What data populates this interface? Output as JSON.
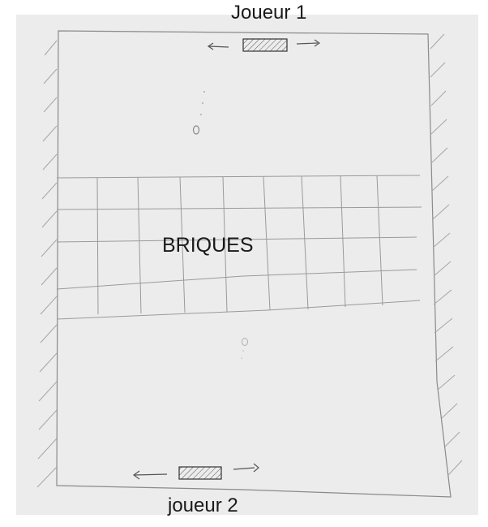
{
  "game": {
    "player_top": "Joueur 1",
    "player_bottom": "joueur 2",
    "bricks_label": "BRIQUES"
  },
  "colors": {
    "background": "#ffffff",
    "paper": "#ececec",
    "pencil": "#8a8a8a",
    "ink": "#1a1a1a"
  },
  "icons": {
    "paddle": "hatched-rectangle",
    "ball": "small-circle",
    "move_left": "arrow-left-icon",
    "move_right": "arrow-right-icon"
  }
}
